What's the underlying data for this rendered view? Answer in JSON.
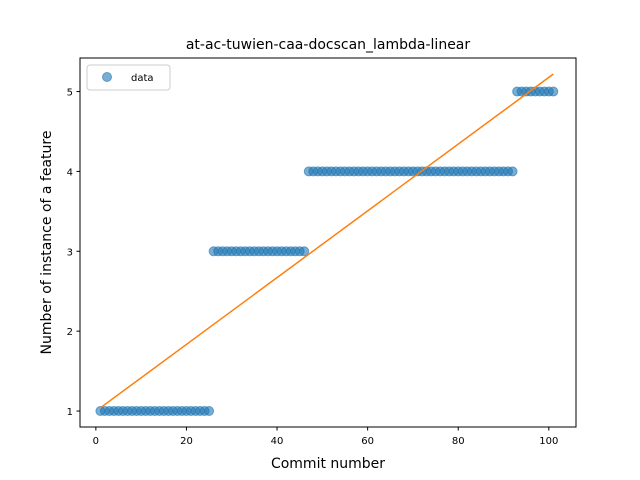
{
  "chart_data": {
    "type": "scatter",
    "title": "at-ac-tuwien-caa-docscan_lambda-linear",
    "xlabel": "Commit number",
    "ylabel": "Number of instance of a feature",
    "xlim": [
      -3.5,
      106
    ],
    "ylim": [
      0.8,
      5.42
    ],
    "xticks": [
      0,
      20,
      40,
      60,
      80,
      100
    ],
    "yticks": [
      1,
      2,
      3,
      4,
      5
    ],
    "legend": {
      "placement": "top-left",
      "entries": [
        "data"
      ]
    },
    "grid": false,
    "series": [
      {
        "name": "data",
        "kind": "scatter",
        "color": "#1f77b4",
        "segments": [
          {
            "x_from": 1,
            "x_to": 25,
            "y": 1
          },
          {
            "x_from": 26,
            "x_to": 46,
            "y": 3
          },
          {
            "x_from": 47,
            "x_to": 92,
            "y": 4
          },
          {
            "x_from": 93,
            "x_to": 101,
            "y": 5
          }
        ]
      },
      {
        "kind": "line",
        "color": "#ff7f0e",
        "x": [
          1,
          101
        ],
        "y": [
          1.04,
          5.22
        ]
      }
    ]
  }
}
